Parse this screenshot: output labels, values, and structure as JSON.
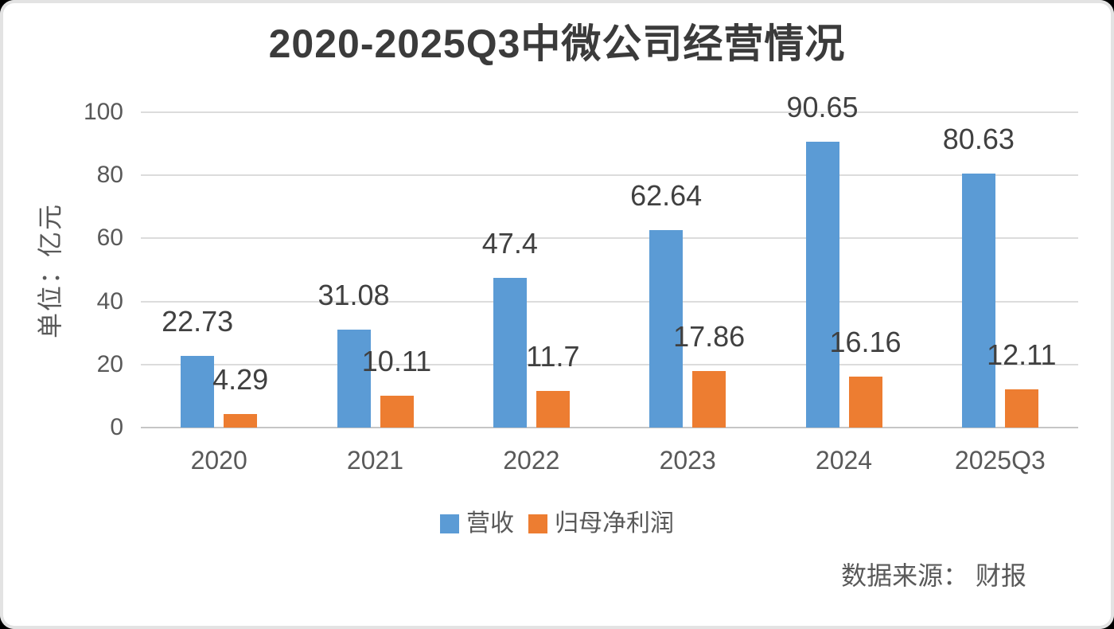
{
  "title": "2020-2025Q3中微公司经营情况",
  "y_axis_title": "单位：亿元",
  "source_note": "数据来源： 财报",
  "colors": {
    "revenue": "#5B9BD5",
    "net_profit": "#ED7D31",
    "value_label": "#404040",
    "axis_text": "#595959",
    "gridline": "#dcdcdc"
  },
  "chart_data": {
    "type": "bar",
    "title": "2020-2025Q3中微公司经营情况",
    "categories": [
      "2020",
      "2021",
      "2022",
      "2023",
      "2024",
      "2025Q3"
    ],
    "series": [
      {
        "name": "营收",
        "slug": "revenue",
        "color": "#5B9BD5",
        "values": [
          22.73,
          31.08,
          47.4,
          62.64,
          90.65,
          80.63
        ]
      },
      {
        "name": "归母净利润",
        "slug": "net-profit",
        "color": "#ED7D31",
        "values": [
          4.29,
          10.11,
          11.7,
          17.86,
          16.16,
          12.11
        ]
      }
    ],
    "ylabel": "单位：亿元",
    "ylim": [
      0,
      100
    ],
    "yticks": [
      0,
      20,
      40,
      60,
      80,
      100
    ],
    "grid": true,
    "value_labels_shown": true,
    "legend_position": "bottom"
  }
}
